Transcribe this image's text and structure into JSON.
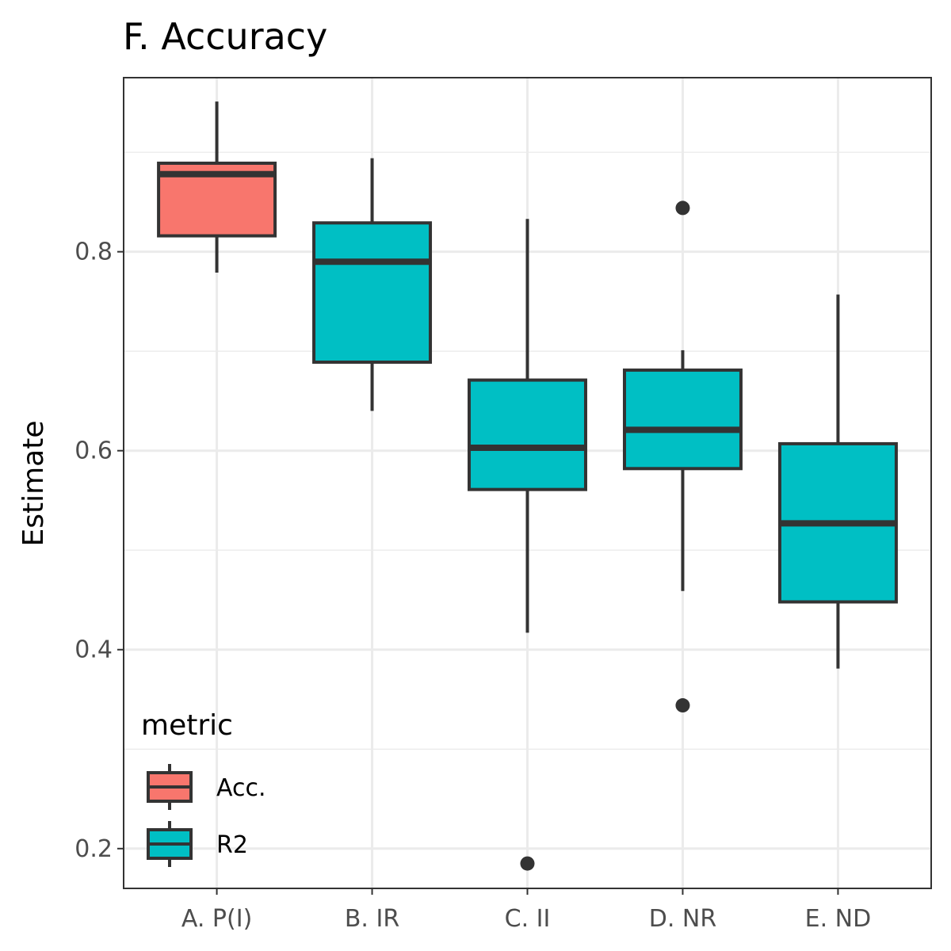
{
  "chart_data": {
    "type": "box",
    "title": "F. Accuracy",
    "xlabel": "",
    "ylabel": "Estimate",
    "ylim": [
      0.16,
      0.975
    ],
    "yticks": [
      0.2,
      0.4,
      0.6,
      0.8
    ],
    "ytick_labels": [
      "0.2",
      "0.4",
      "0.6",
      "0.8"
    ],
    "categories": [
      "A. P(I)",
      "B. IR",
      "C. II",
      "D. NR",
      "E. ND"
    ],
    "grid": true,
    "legend": {
      "title": "metric",
      "placement": "bottom-left",
      "entries": [
        {
          "label": "Acc.",
          "color": "#F8766D"
        },
        {
          "label": "R2",
          "color": "#00BFC4"
        }
      ]
    },
    "series": [
      {
        "category": "A. P(I)",
        "metric": "Acc.",
        "min": 0.779,
        "q1": 0.816,
        "median": 0.878,
        "q3": 0.889,
        "max": 0.951,
        "outliers": []
      },
      {
        "category": "B. IR",
        "metric": "R2",
        "min": 0.64,
        "q1": 0.689,
        "median": 0.79,
        "q3": 0.829,
        "max": 0.894,
        "outliers": []
      },
      {
        "category": "C. II",
        "metric": "R2",
        "min": 0.417,
        "q1": 0.561,
        "median": 0.603,
        "q3": 0.671,
        "max": 0.833,
        "outliers": [
          0.185
        ]
      },
      {
        "category": "D. NR",
        "metric": "R2",
        "min": 0.459,
        "q1": 0.582,
        "median": 0.621,
        "q3": 0.681,
        "max": 0.701,
        "outliers": [
          0.844,
          0.344
        ]
      },
      {
        "category": "E. ND",
        "metric": "R2",
        "min": 0.381,
        "q1": 0.448,
        "median": 0.527,
        "q3": 0.607,
        "max": 0.757,
        "outliers": []
      }
    ]
  }
}
